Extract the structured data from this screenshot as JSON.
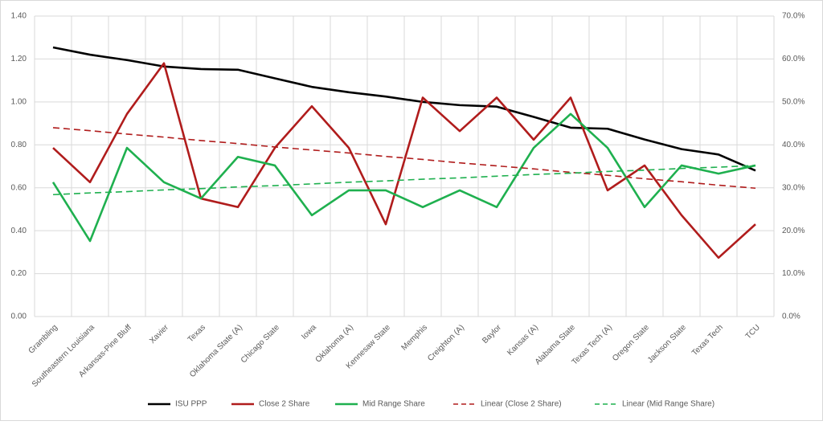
{
  "chart_data": {
    "type": "line",
    "categories": [
      "Grambling",
      "Southeastern Louisiana",
      "Arkansas-Pine Bluff",
      "Xavier",
      "Texas",
      "Oklahoma State (A)",
      "Chicago State",
      "Iowa",
      "Oklahoma (A)",
      "Kennesaw State",
      "Memphis",
      "Creighton (A)",
      "Baylor",
      "Kansas (A)",
      "Alabama State",
      "Texas Tech (A)",
      "Oregon State",
      "Jackson State",
      "Texas Tech",
      "TCU"
    ],
    "series": [
      {
        "name": "ISU PPP",
        "color": "#000000",
        "dash": false,
        "values": [
          1.254,
          1.22,
          1.195,
          1.165,
          1.153,
          1.15,
          1.11,
          1.07,
          1.045,
          1.025,
          1.0,
          0.985,
          0.978,
          0.93,
          0.88,
          0.875,
          0.825,
          0.78,
          0.755,
          0.68
        ]
      },
      {
        "name": "Close 2 Share",
        "color": "#b01c1c",
        "dash": false,
        "axis": "y2",
        "values": [
          39.3,
          31.3,
          47.2,
          59.0,
          27.5,
          25.5,
          39.3,
          49.0,
          39.3,
          21.5,
          51.0,
          43.2,
          51.0,
          41.2,
          51.0,
          29.4,
          35.2,
          23.6,
          13.7,
          21.5
        ]
      },
      {
        "name": "Mid Range Share",
        "color": "#1fb04f",
        "dash": false,
        "axis": "y2",
        "values": [
          31.3,
          17.6,
          39.3,
          31.3,
          27.5,
          37.2,
          35.2,
          23.6,
          29.4,
          29.4,
          25.5,
          29.4,
          25.5,
          39.3,
          47.2,
          39.3,
          25.5,
          35.2,
          33.3,
          35.2
        ]
      },
      {
        "name": "Linear (Close 2 Share)",
        "color": "#b01c1c",
        "dash": true,
        "axis": "y2",
        "values": [
          44.0,
          43.3,
          42.5,
          41.8,
          41.0,
          40.3,
          39.5,
          38.8,
          38.1,
          37.3,
          36.6,
          35.8,
          35.1,
          34.4,
          33.6,
          32.9,
          32.1,
          31.4,
          30.6,
          29.9
        ]
      },
      {
        "name": "Linear (Mid Range Share)",
        "color": "#1fb04f",
        "dash": true,
        "axis": "y2",
        "values": [
          28.4,
          28.8,
          29.1,
          29.5,
          29.8,
          30.2,
          30.5,
          30.9,
          31.3,
          31.6,
          32.0,
          32.3,
          32.7,
          33.1,
          33.4,
          33.8,
          34.1,
          34.5,
          34.8,
          35.2
        ]
      }
    ],
    "ylim": [
      0,
      1.4
    ],
    "yticks": [
      {
        "value": 0,
        "label": "0.00"
      },
      {
        "value": 0.2,
        "label": "0.20"
      },
      {
        "value": 0.4,
        "label": "0.40"
      },
      {
        "value": 0.6,
        "label": "0.60"
      },
      {
        "value": 0.8,
        "label": "0.80"
      },
      {
        "value": 1.0,
        "label": "1.00"
      },
      {
        "value": 1.2,
        "label": "1.20"
      },
      {
        "value": 1.4,
        "label": "1.40"
      }
    ],
    "y2lim": [
      0,
      70
    ],
    "y2ticks": [
      {
        "value": 0,
        "label": "0.0%"
      },
      {
        "value": 10,
        "label": "10.0%"
      },
      {
        "value": 20,
        "label": "20.0%"
      },
      {
        "value": 30,
        "label": "30.0%"
      },
      {
        "value": 40,
        "label": "40.0%"
      },
      {
        "value": 50,
        "label": "50.0%"
      },
      {
        "value": 60,
        "label": "60.0%"
      },
      {
        "value": 70,
        "label": "70.0%"
      }
    ],
    "grid": true,
    "legend": "bottom"
  }
}
